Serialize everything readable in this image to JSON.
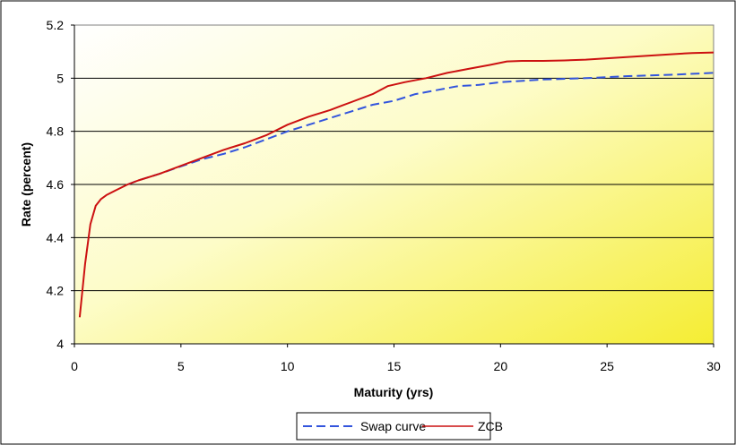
{
  "chart_data": {
    "type": "line",
    "xlabel": "Maturity (yrs)",
    "ylabel": "Rate (percent)",
    "xlim": [
      0,
      30
    ],
    "ylim": [
      4,
      5.2
    ],
    "x_ticks": [
      "0",
      "5",
      "10",
      "15",
      "20",
      "25",
      "30"
    ],
    "y_ticks": [
      "4",
      "4.2",
      "4.4",
      "4.6",
      "4.8",
      "5",
      "5.2"
    ],
    "grid": "horizontal",
    "legend_position": "bottom",
    "background": "yellow-gradient",
    "series": [
      {
        "name": "Swap curve",
        "color": "#3355dd",
        "style": "dashed",
        "x": [
          2.5,
          3,
          4,
          5,
          6,
          7,
          8,
          9,
          10,
          11,
          12,
          13,
          14,
          15,
          16,
          17,
          18,
          19,
          20,
          22,
          24,
          26,
          28,
          30
        ],
        "y": [
          4.6,
          4.615,
          4.64,
          4.668,
          4.695,
          4.715,
          4.74,
          4.77,
          4.8,
          4.825,
          4.85,
          4.875,
          4.9,
          4.915,
          4.94,
          4.955,
          4.97,
          4.975,
          4.985,
          4.995,
          5.0,
          5.008,
          5.013,
          5.02
        ]
      },
      {
        "name": "ZCB",
        "color": "#cc1111",
        "style": "solid",
        "x": [
          0.25,
          0.5,
          0.75,
          1.0,
          1.25,
          1.5,
          2,
          2.5,
          3,
          4,
          5,
          6,
          7,
          8,
          9,
          10,
          11,
          12,
          13,
          14,
          14.7,
          15.5,
          16.5,
          17.5,
          18.5,
          19.5,
          20.3,
          21,
          22,
          23,
          24,
          25,
          26,
          27,
          28,
          29,
          30
        ],
        "y": [
          4.1,
          4.3,
          4.45,
          4.52,
          4.545,
          4.56,
          4.58,
          4.6,
          4.615,
          4.64,
          4.67,
          4.7,
          4.73,
          4.755,
          4.785,
          4.825,
          4.855,
          4.88,
          4.91,
          4.94,
          4.97,
          4.985,
          5.0,
          5.02,
          5.035,
          5.05,
          5.063,
          5.065,
          5.065,
          5.067,
          5.07,
          5.075,
          5.08,
          5.085,
          5.09,
          5.095,
          5.097
        ]
      }
    ]
  }
}
